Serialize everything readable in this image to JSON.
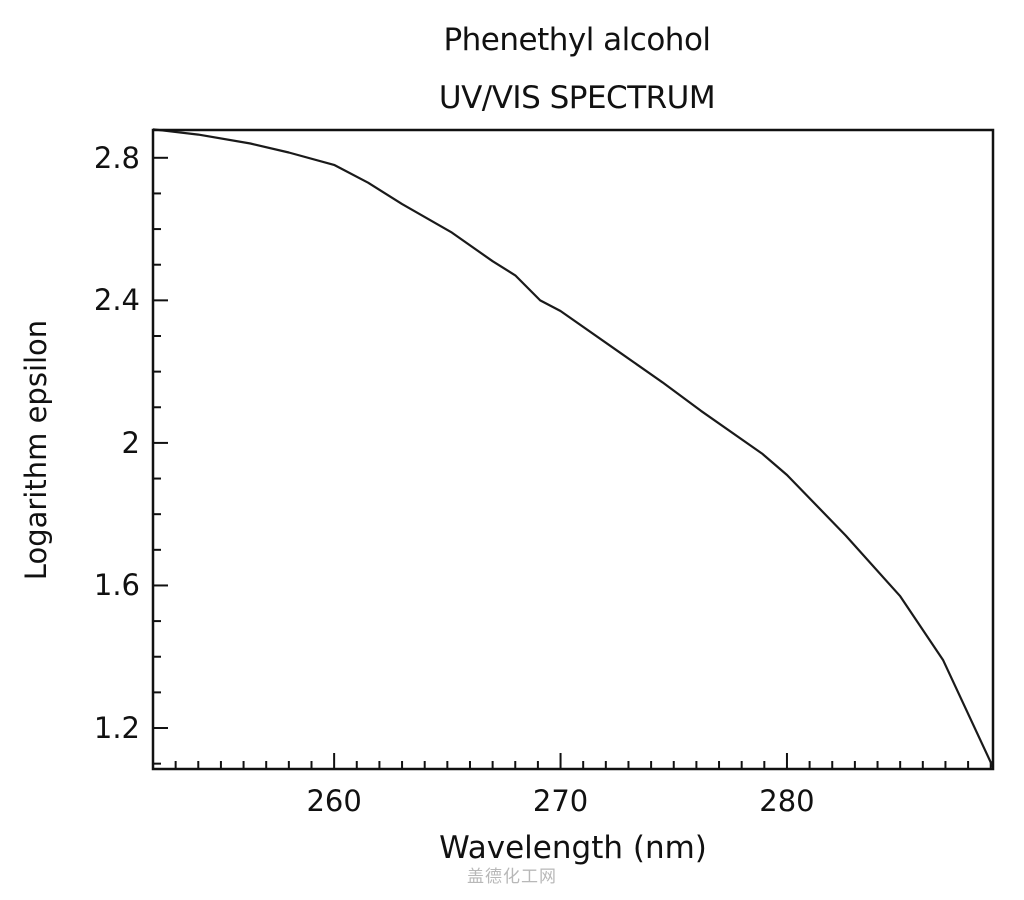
{
  "chart_data": {
    "type": "line",
    "title": "Phenethyl alcohol",
    "subtitle": "UV/VIS SPECTRUM",
    "xlabel": "Wavelength (nm)",
    "ylabel": "Logarithm epsilon",
    "xlim": [
      252.0,
      289.1
    ],
    "ylim": [
      1.085,
      2.878
    ],
    "x_ticks": [
      260,
      270,
      280
    ],
    "x_tick_labels": [
      "260",
      "270",
      "280"
    ],
    "x_minor_tick_step": 1,
    "y_ticks": [
      1.2,
      1.6,
      2.0,
      2.4,
      2.8
    ],
    "y_tick_labels": [
      "1.2",
      "1.6",
      "2",
      "2.4",
      "2.8"
    ],
    "y_minor_tick_step": 0.1,
    "grid": false,
    "legend": null,
    "series": [
      {
        "name": "Phenethyl alcohol",
        "color": "#1a1a1a",
        "x": [
          252.0,
          254.0,
          256.3,
          258.0,
          260.0,
          261.5,
          263.0,
          265.2,
          267.0,
          268.0,
          269.1,
          270.0,
          272.7,
          274.5,
          276.2,
          278.9,
          280.0,
          282.6,
          285.0,
          286.9,
          289.1
        ],
        "y": [
          2.88,
          2.865,
          2.84,
          2.815,
          2.78,
          2.73,
          2.67,
          2.59,
          2.51,
          2.47,
          2.4,
          2.37,
          2.25,
          2.17,
          2.09,
          1.97,
          1.91,
          1.74,
          1.57,
          1.39,
          1.09
        ]
      }
    ]
  },
  "watermark": "盖德化工网"
}
